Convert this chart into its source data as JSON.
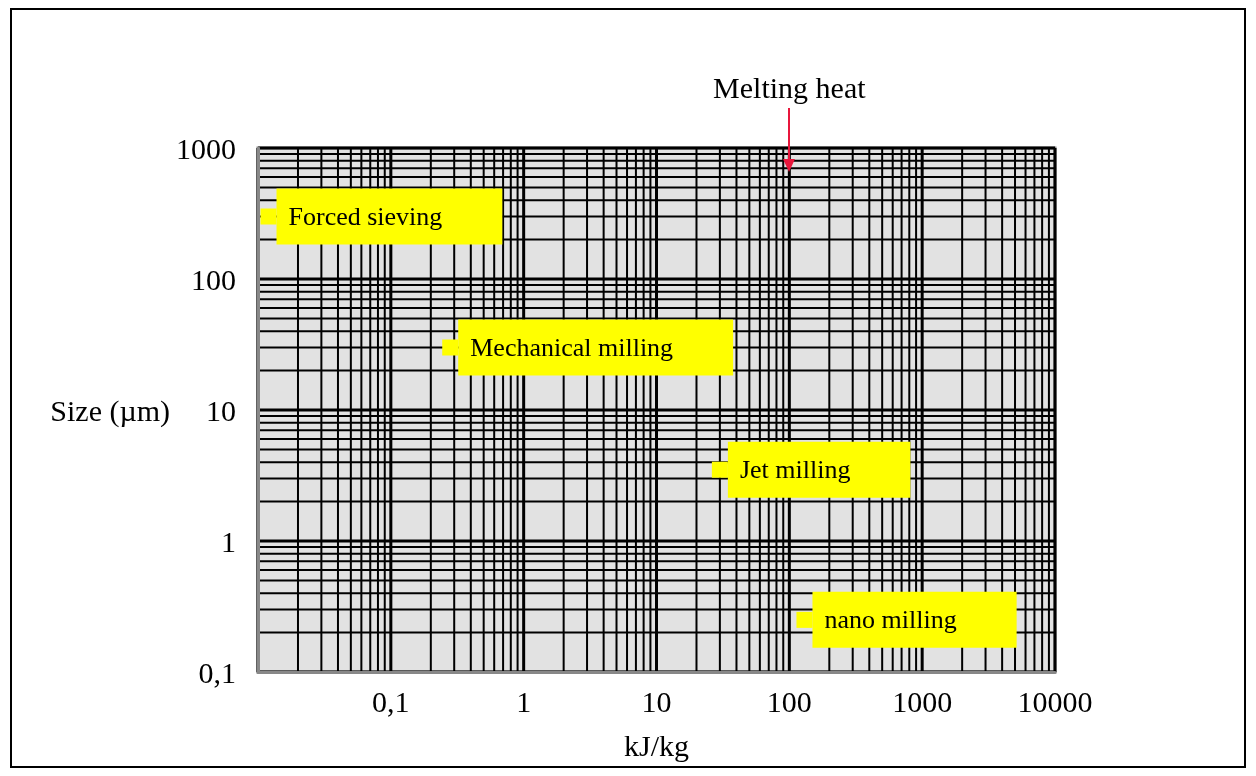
{
  "chart_data": {
    "type": "scatter",
    "xlabel": "kJ/kg",
    "ylabel": "Size (µm)",
    "log": "xy",
    "grid": true,
    "xlim": [
      0.01,
      10000
    ],
    "ylim": [
      0.1,
      1000
    ],
    "xticks": [
      {
        "value": 0.1,
        "label": "0,1"
      },
      1,
      10,
      100,
      1000,
      10000
    ],
    "yticks": [
      {
        "value": 0.1,
        "label": "0,1"
      },
      1,
      10,
      100,
      1000
    ],
    "marker": "square",
    "series": [
      {
        "name": "Forced sieving",
        "color": "#ffff00",
        "x": [
          0.012
        ],
        "values": [
          300
        ]
      },
      {
        "name": "Mechanical milling",
        "color": "#ffff00",
        "x": [
          0.28
        ],
        "values": [
          30
        ]
      },
      {
        "name": "Jet milling",
        "color": "#ffff00",
        "x": [
          30
        ],
        "values": [
          3.5
        ]
      },
      {
        "name": "nano milling",
        "color": "#ffff00",
        "x": [
          130
        ],
        "values": [
          0.25
        ]
      }
    ],
    "ref_lines": [
      {
        "axis": "x",
        "value": 100,
        "label": "Melting heat",
        "color": "#e8173c"
      }
    ]
  }
}
